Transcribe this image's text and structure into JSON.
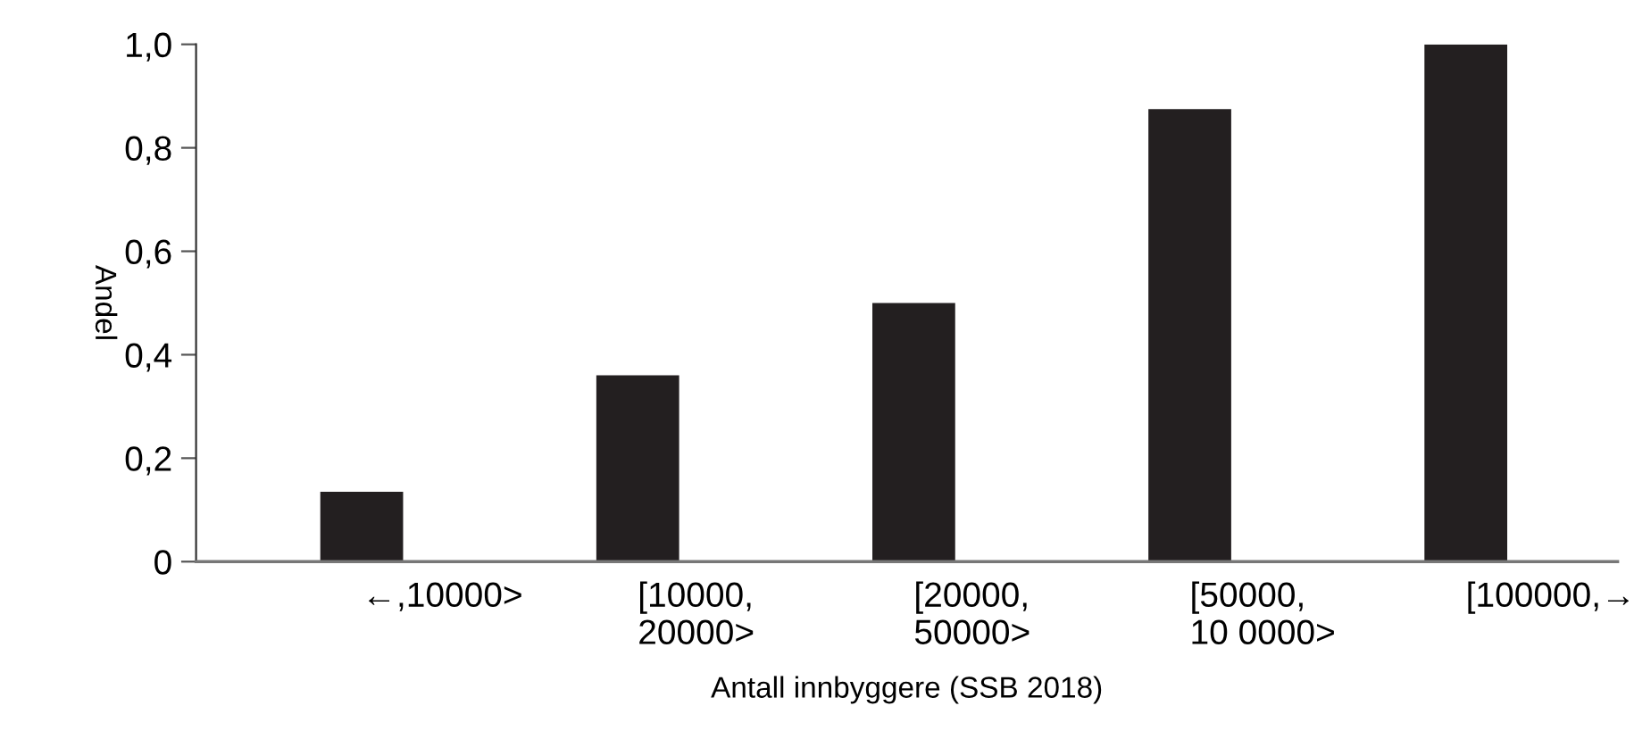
{
  "chart_data": {
    "type": "bar",
    "xlabel": "Antall innbyggere (SSB 2018)",
    "ylabel": "Andel",
    "categories": [
      "←,10000>",
      "[10000,\n20000>",
      "[20000,\n50000>",
      "[50000,\n10 0000>",
      "[100000,→"
    ],
    "values": [
      0.135,
      0.36,
      0.5,
      0.875,
      1.0
    ],
    "color": "#231f20",
    "ylim": [
      0,
      1.0
    ],
    "yticks": [
      {
        "value": 0,
        "label": "0"
      },
      {
        "value": 0.2,
        "label": "0,2"
      },
      {
        "value": 0.4,
        "label": "0,4"
      },
      {
        "value": 0.6,
        "label": "0,6"
      },
      {
        "value": 0.8,
        "label": "0,8"
      },
      {
        "value": 1.0,
        "label": "1,0"
      }
    ],
    "grid": false,
    "legend": false
  }
}
